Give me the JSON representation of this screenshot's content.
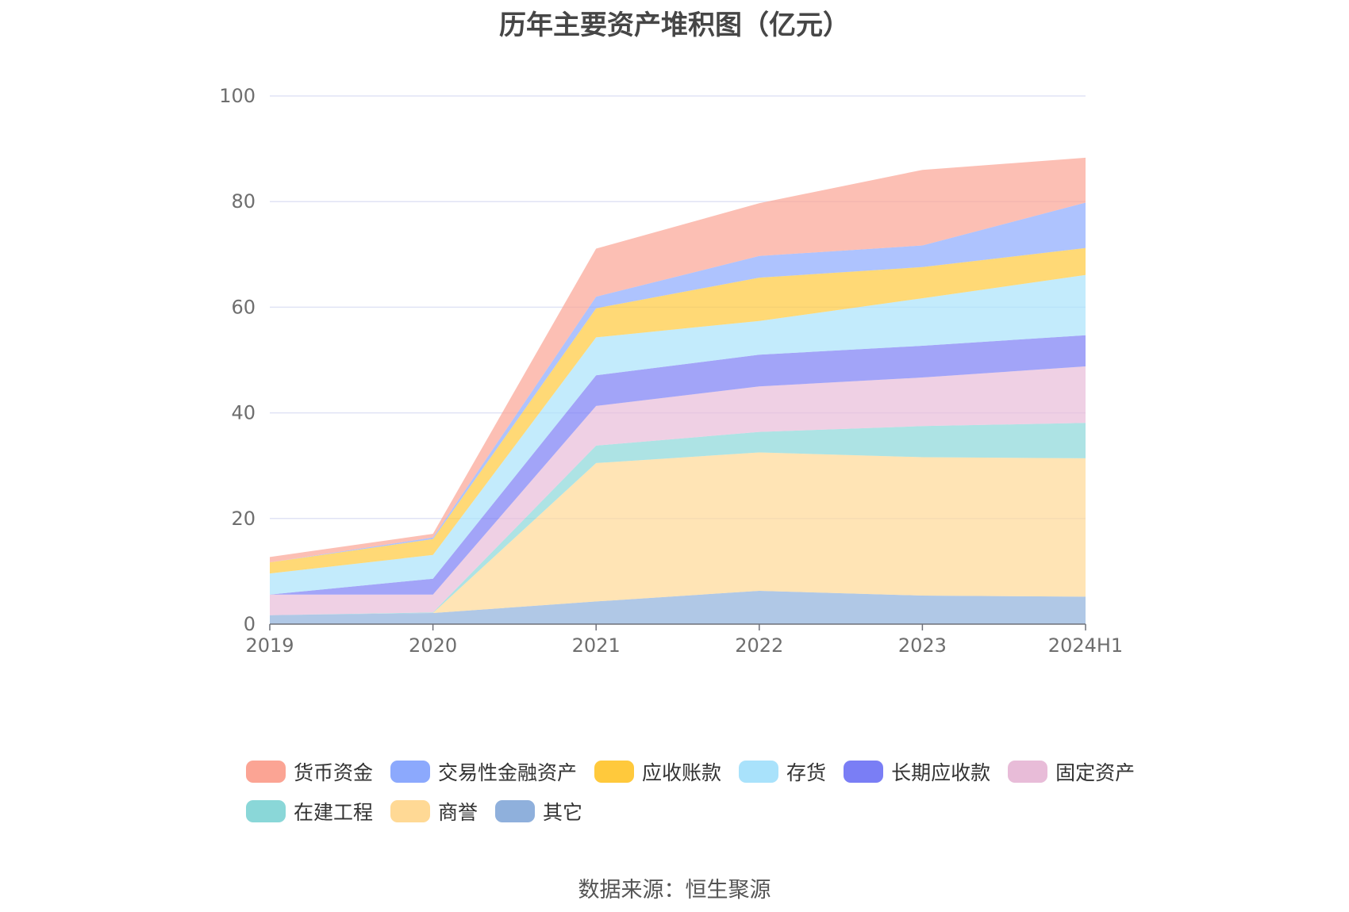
{
  "title": "历年主要资产堆积图（亿元）",
  "source": "数据来源：恒生聚源",
  "chart_data": {
    "type": "area",
    "stacked": true,
    "title": "历年主要资产堆积图（亿元）",
    "xlabel": "",
    "ylabel": "",
    "ylim": [
      0,
      100
    ],
    "yticks": [
      0,
      20,
      40,
      60,
      80,
      100
    ],
    "grid": true,
    "legend_position": "bottom",
    "categories": [
      "2019",
      "2020",
      "2021",
      "2022",
      "2023",
      "2024H1"
    ],
    "series": [
      {
        "name": "其它",
        "color": "#8fb0dc",
        "values": [
          1.7,
          2.1,
          4.3,
          6.3,
          5.4,
          5.2
        ]
      },
      {
        "name": "商誉",
        "color": "#ffd995",
        "values": [
          0.0,
          0.0,
          26.2,
          26.2,
          26.2,
          26.2
        ]
      },
      {
        "name": "在建工程",
        "color": "#8ad7d8",
        "values": [
          0.0,
          0.1,
          3.3,
          3.9,
          5.9,
          6.7
        ]
      },
      {
        "name": "固定资产",
        "color": "#e8bcd8",
        "values": [
          3.9,
          3.4,
          7.5,
          8.6,
          9.2,
          10.7
        ]
      },
      {
        "name": "长期应收款",
        "color": "#7a7ef5",
        "values": [
          0.0,
          3.0,
          5.8,
          6.0,
          6.0,
          5.9
        ]
      },
      {
        "name": "存货",
        "color": "#a9e2fb",
        "values": [
          4.0,
          4.5,
          7.2,
          6.4,
          9.0,
          11.4
        ]
      },
      {
        "name": "应收账款",
        "color": "#ffc93c",
        "values": [
          2.1,
          3.0,
          5.5,
          8.2,
          5.9,
          5.1
        ]
      },
      {
        "name": "交易性金融资产",
        "color": "#8ca9fd",
        "values": [
          0.0,
          0.3,
          2.2,
          4.1,
          4.1,
          8.6
        ]
      },
      {
        "name": "货币资金",
        "color": "#fba494",
        "values": [
          1.0,
          0.7,
          9.1,
          10.0,
          14.3,
          8.5
        ]
      }
    ],
    "legend_order": [
      "货币资金",
      "交易性金融资产",
      "应收账款",
      "存货",
      "长期应收款",
      "固定资产",
      "在建工程",
      "商誉",
      "其它"
    ]
  }
}
